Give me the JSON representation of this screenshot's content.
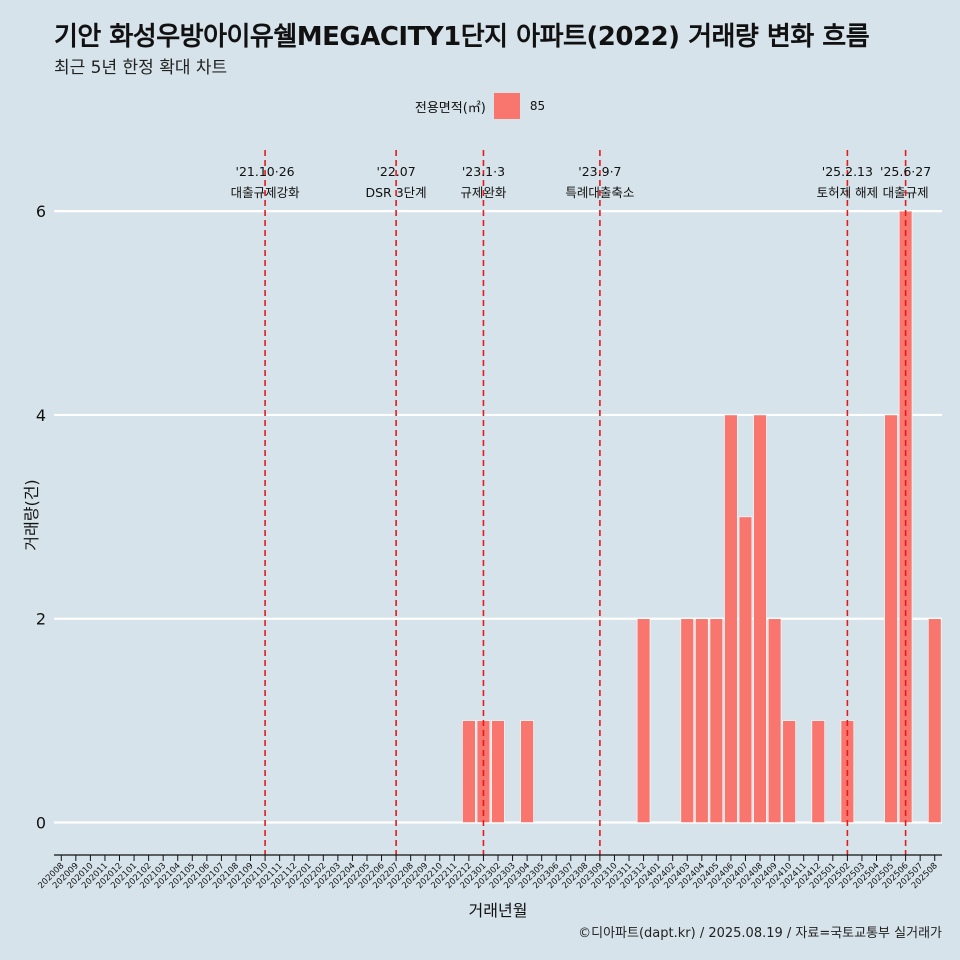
{
  "header": {
    "title": "기안 화성우방아이유쉘MEGACITY1단지 아파트(2022) 거래량 변화 흐름",
    "subtitle": "최근 5년 한정 확대 차트"
  },
  "legend": {
    "title": "전용면적(㎡)",
    "entries": [
      {
        "label": "85",
        "color": "#f8766d"
      }
    ]
  },
  "caption": "©디아파트(dapt.kr) / 2025.08.19 / 자료=국토교통부 실거래가",
  "chart_data": {
    "type": "bar",
    "xlabel": "거래년월",
    "ylabel": "거래량(건)",
    "ylim": [
      -0.25,
      6.6
    ],
    "yticks": [
      0,
      2,
      4,
      6
    ],
    "grid": true,
    "legend_position": "top",
    "bar_color": "#f8766d",
    "categories": [
      "202008",
      "202009",
      "202010",
      "202011",
      "202012",
      "202101",
      "202102",
      "202103",
      "202104",
      "202105",
      "202106",
      "202107",
      "202108",
      "202109",
      "202110",
      "202111",
      "202112",
      "202201",
      "202202",
      "202203",
      "202204",
      "202205",
      "202206",
      "202207",
      "202208",
      "202209",
      "202210",
      "202211",
      "202212",
      "202301",
      "202302",
      "202303",
      "202304",
      "202305",
      "202306",
      "202307",
      "202308",
      "202309",
      "202310",
      "202311",
      "202312",
      "202401",
      "202402",
      "202403",
      "202404",
      "202405",
      "202406",
      "202407",
      "202408",
      "202409",
      "202410",
      "202411",
      "202412",
      "202501",
      "202502",
      "202503",
      "202504",
      "202505",
      "202506",
      "202507",
      "202508"
    ],
    "series": [
      {
        "name": "85",
        "values": [
          0,
          0,
          0,
          0,
          0,
          0,
          0,
          0,
          0,
          0,
          0,
          0,
          0,
          0,
          0,
          0,
          0,
          0,
          0,
          0,
          0,
          0,
          0,
          0,
          0,
          0,
          0,
          0,
          1,
          1,
          1,
          0,
          1,
          0,
          0,
          0,
          0,
          0,
          0,
          0,
          2,
          0,
          0,
          2,
          2,
          2,
          4,
          3,
          4,
          2,
          1,
          0,
          1,
          0,
          1,
          0,
          0,
          4,
          6,
          0,
          2
        ]
      }
    ],
    "annotations": [
      {
        "date_line1": "'21.10·26",
        "date_line2": "대출규제강화",
        "x": "202110",
        "offset": 0.0
      },
      {
        "date_line1": "'22.07",
        "date_line2": "DSR 3단계",
        "x": "202207",
        "offset": 0.0
      },
      {
        "date_line1": "'23.1·3",
        "date_line2": "규제완화",
        "x": "202301",
        "offset": 0.0
      },
      {
        "date_line1": "'23.9·7",
        "date_line2": "특례대출축소",
        "x": "202309",
        "offset": 0.0
      },
      {
        "date_line1": "'25.2.13",
        "date_line2": "토허제 해제",
        "x": "202502",
        "offset": 0.0
      },
      {
        "date_line1": "'25.6·27",
        "date_line2": "대출규제",
        "x": "202506",
        "offset": 0.0
      }
    ]
  }
}
